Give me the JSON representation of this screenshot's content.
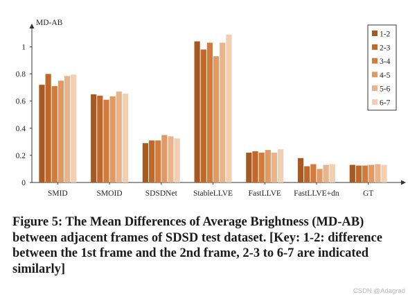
{
  "chart_data": {
    "type": "bar",
    "title": "",
    "xlabel": "",
    "ylabel": "MD-AB",
    "ylim": [
      0,
      1.2
    ],
    "yticks": [
      0,
      0.2,
      0.4,
      0.6,
      0.8,
      1
    ],
    "ytick_labels": [
      "0",
      "0.2",
      "0.4",
      "0.6",
      "0.8",
      "1"
    ],
    "grid": false,
    "legend_position": "top-right",
    "categories": [
      "SMID",
      "SMOID",
      "SDSDNet",
      "StableLLVE",
      "FastLLVE",
      "FastLLVE+dn",
      "GT"
    ],
    "series": [
      {
        "name": "1-2",
        "color": "#a65a21",
        "values": [
          0.72,
          0.65,
          0.29,
          1.04,
          0.22,
          0.18,
          0.13
        ]
      },
      {
        "name": "2-3",
        "color": "#c0672a",
        "values": [
          0.8,
          0.64,
          0.31,
          0.98,
          0.23,
          0.12,
          0.125
        ]
      },
      {
        "name": "3-4",
        "color": "#d27b3c",
        "values": [
          0.71,
          0.61,
          0.31,
          1.03,
          0.22,
          0.135,
          0.125
        ]
      },
      {
        "name": "4-5",
        "color": "#e09a66",
        "values": [
          0.75,
          0.635,
          0.35,
          0.93,
          0.24,
          0.1,
          0.13
        ]
      },
      {
        "name": "5-6",
        "color": "#e9b48c",
        "values": [
          0.785,
          0.67,
          0.34,
          1.03,
          0.22,
          0.13,
          0.135
        ]
      },
      {
        "name": "6-7",
        "color": "#f1cfb3",
        "values": [
          0.795,
          0.655,
          0.325,
          1.09,
          0.245,
          0.135,
          0.13
        ]
      }
    ]
  },
  "caption": "Figure 5: The Mean Differences of Average Brightness (MD-AB) between adjacent frames of SDSD test dataset. [Key: 1-2: difference between the 1st frame and the 2nd frame, 2-3 to 6-7 are indicated similarly]",
  "watermark": "CSDN @Adagrad"
}
